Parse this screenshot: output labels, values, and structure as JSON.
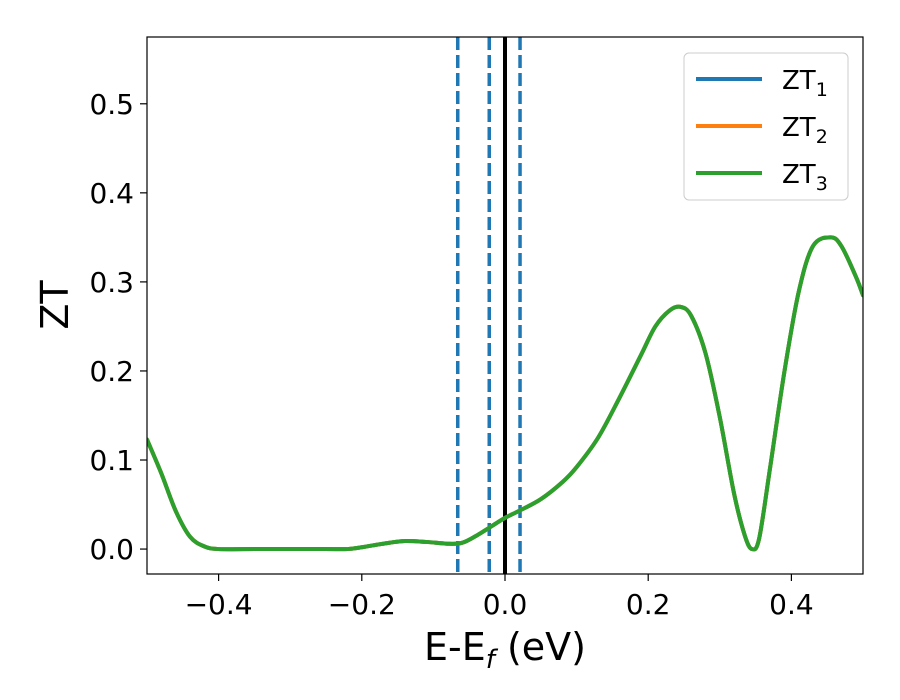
{
  "chart_data": {
    "type": "line",
    "title": "",
    "xlabel": {
      "main": "E-E",
      "sub": "f",
      "unit": " (eV)"
    },
    "ylabel": "ZT",
    "xlim": [
      -0.5,
      0.5
    ],
    "ylim": [
      -0.028,
      0.575
    ],
    "grid": false,
    "legend_position": "top-right",
    "x_ticks": [
      -0.4,
      -0.2,
      0.0,
      0.2,
      0.4
    ],
    "x_tick_labels": [
      "−0.4",
      "−0.2",
      "0.0",
      "0.2",
      "0.4"
    ],
    "y_ticks": [
      0.0,
      0.1,
      0.2,
      0.3,
      0.4,
      0.5
    ],
    "y_tick_labels": [
      "0.0",
      "0.1",
      "0.2",
      "0.3",
      "0.4",
      "0.5"
    ],
    "series": [
      {
        "name": "ZT",
        "name_sub": "1",
        "color": "#1f77b4"
      },
      {
        "name": "ZT",
        "name_sub": "2",
        "color": "#ff7f0e"
      },
      {
        "name": "ZT",
        "name_sub": "3",
        "color": "#2ca02c"
      }
    ],
    "curve": {
      "x": [
        -0.5,
        -0.48,
        -0.46,
        -0.44,
        -0.42,
        -0.4,
        -0.35,
        -0.3,
        -0.25,
        -0.22,
        -0.2,
        -0.17,
        -0.14,
        -0.11,
        -0.08,
        -0.06,
        -0.04,
        -0.02,
        0.0,
        0.02,
        0.05,
        0.08,
        0.1,
        0.13,
        0.16,
        0.19,
        0.21,
        0.23,
        0.245,
        0.26,
        0.28,
        0.3,
        0.32,
        0.335,
        0.345,
        0.355,
        0.37,
        0.39,
        0.41,
        0.43,
        0.455,
        0.47,
        0.49,
        0.5
      ],
      "y": [
        0.123,
        0.085,
        0.043,
        0.014,
        0.003,
        0.0,
        0.0,
        0.0,
        0.0,
        0.0,
        0.002,
        0.006,
        0.009,
        0.008,
        0.006,
        0.007,
        0.015,
        0.025,
        0.035,
        0.043,
        0.056,
        0.075,
        0.092,
        0.125,
        0.17,
        0.218,
        0.25,
        0.268,
        0.272,
        0.262,
        0.22,
        0.148,
        0.062,
        0.015,
        0.0,
        0.012,
        0.09,
        0.198,
        0.288,
        0.34,
        0.35,
        0.34,
        0.306,
        0.285
      ],
      "color": "#2ca02c"
    },
    "vertical_lines": [
      {
        "x": -0.066,
        "style": "dashed",
        "color": "#1f77b4"
      },
      {
        "x": -0.022,
        "style": "dashed",
        "color": "#1f77b4"
      },
      {
        "x": 0.0,
        "style": "solid",
        "color": "#000000"
      },
      {
        "x": 0.021,
        "style": "dashed",
        "color": "#1f77b4"
      }
    ]
  }
}
